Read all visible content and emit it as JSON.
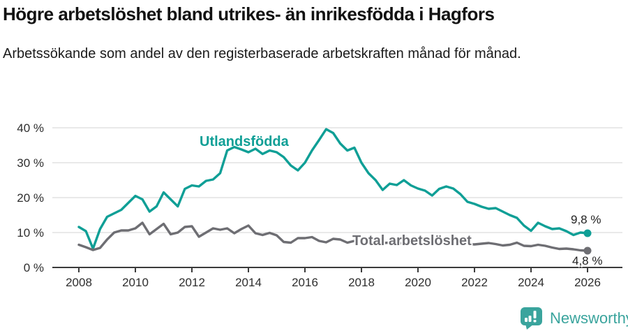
{
  "chart_data": {
    "type": "line",
    "title": "Högre arbetslöshet bland utrikes- än inrikesfödda i Hagfors",
    "subtitle": "Arbetssökande som andel av den registerbaserade arbetskraften månad för månad.",
    "x_tick_labels": [
      "2008",
      "2010",
      "2012",
      "2014",
      "2016",
      "2018",
      "2020",
      "2022",
      "2024",
      "2026"
    ],
    "y_tick_labels": [
      "0 %",
      "10 %",
      "20 %",
      "30 %",
      "40 %"
    ],
    "ylim": [
      0,
      40
    ],
    "xlim": [
      2007.1,
      2027.2
    ],
    "grid": "horizontal",
    "x_unit": "year (monthly data sampled quarterly)",
    "colors": {
      "grid": "#dcdcdc",
      "axis": "#3b3b3b",
      "tick_text": "#2e2e2e",
      "value_label": "#1f1f1f"
    },
    "series": [
      {
        "name": "Utlandsfödda",
        "color": "#0f9f96",
        "x_start": 2008.0,
        "x_step": 0.25,
        "end_label": "9,8 %",
        "end_value": 9.8,
        "values": [
          11.6,
          10.4,
          5.4,
          11.0,
          14.5,
          15.5,
          16.5,
          18.5,
          20.5,
          19.5,
          16.0,
          17.5,
          21.5,
          19.5,
          17.5,
          22.5,
          23.5,
          23.2,
          24.8,
          25.2,
          27.0,
          33.5,
          34.5,
          33.8,
          33.0,
          34.0,
          32.5,
          33.5,
          33.0,
          31.6,
          29.2,
          27.8,
          30.0,
          33.5,
          36.5,
          39.6,
          38.5,
          35.5,
          33.5,
          34.3,
          30.0,
          27.0,
          25.0,
          22.2,
          24.0,
          23.6,
          25.0,
          23.5,
          22.6,
          22.0,
          20.6,
          22.5,
          23.2,
          22.6,
          21.0,
          18.8,
          18.2,
          17.4,
          16.8,
          17.0,
          16.0,
          15.0,
          14.2,
          12.0,
          10.5,
          12.8,
          11.8,
          11.0,
          11.2,
          10.4,
          9.3,
          10.0,
          9.8
        ]
      },
      {
        "name": "Total arbetslöshet",
        "color": "#6e6e73",
        "x_start": 2008.0,
        "x_step": 0.25,
        "end_label": "4,8 %",
        "end_value": 4.8,
        "values": [
          6.5,
          5.8,
          5.0,
          5.6,
          8.0,
          10.0,
          10.6,
          10.6,
          11.2,
          12.8,
          9.5,
          11.0,
          12.5,
          9.5,
          10.0,
          11.6,
          11.8,
          8.8,
          10.0,
          11.2,
          10.8,
          11.2,
          9.8,
          11.0,
          12.0,
          9.8,
          9.3,
          9.9,
          9.2,
          7.3,
          7.1,
          8.4,
          8.4,
          8.7,
          7.6,
          7.2,
          8.2,
          8.0,
          7.1,
          7.6,
          7.7,
          7.4,
          7.2,
          7.0,
          7.1,
          7.0,
          6.9,
          6.8,
          7.0,
          7.4,
          7.3,
          7.1,
          7.0,
          6.9,
          6.8,
          6.7,
          6.6,
          6.8,
          7.0,
          6.7,
          6.3,
          6.5,
          7.1,
          6.2,
          6.1,
          6.5,
          6.2,
          5.7,
          5.3,
          5.4,
          5.2,
          4.9,
          4.8
        ]
      }
    ]
  },
  "footer": {
    "brand": "Newsworthy",
    "brand_color": "#3aa49d"
  }
}
